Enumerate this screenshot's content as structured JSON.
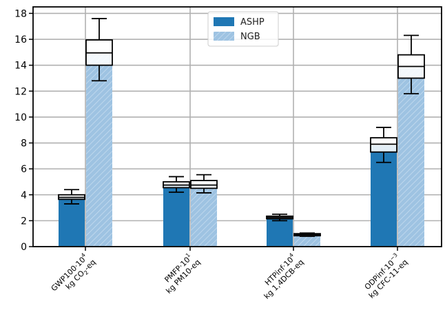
{
  "chart_data": {
    "type": "bar",
    "categories": [
      {
        "line1": "GWP100·10",
        "sup1": "4",
        "line2_pre": "kg CO",
        "sub2": "2",
        "line2_post": "-eq"
      },
      {
        "line1": "PMFP·10",
        "sup1": "1",
        "line2_pre": "kg PM10-eq",
        "sub2": "",
        "line2_post": ""
      },
      {
        "line1": "HTPinf·10",
        "sup1": "4",
        "line2_pre": "kg 1,4DCB-eq",
        "sub2": "",
        "line2_post": ""
      },
      {
        "line1": "ODPinf·10",
        "sup1": "−3",
        "line2_pre": "kg CFC-11-eq",
        "sub2": "",
        "line2_post": ""
      }
    ],
    "series": [
      {
        "name": "ASHP",
        "values": [
          3.75,
          4.75,
          2.2,
          7.8
        ],
        "box": [
          {
            "whisker_low": 3.3,
            "q1": 3.65,
            "median": 3.8,
            "q3": 4.0,
            "whisker_high": 4.4
          },
          {
            "whisker_low": 4.2,
            "q1": 4.55,
            "median": 4.75,
            "q3": 5.0,
            "whisker_high": 5.4
          },
          {
            "whisker_low": 2.0,
            "q1": 2.15,
            "median": 2.25,
            "q3": 2.35,
            "whisker_high": 2.5
          },
          {
            "whisker_low": 6.5,
            "q1": 7.3,
            "median": 7.9,
            "q3": 8.4,
            "whisker_high": 9.2
          }
        ]
      },
      {
        "name": "NGB",
        "values": [
          14.9,
          4.7,
          0.9,
          13.8
        ],
        "box": [
          {
            "whisker_low": 12.8,
            "q1": 14.0,
            "median": 14.95,
            "q3": 15.95,
            "whisker_high": 17.6
          },
          {
            "whisker_low": 4.15,
            "q1": 4.5,
            "median": 4.75,
            "q3": 5.1,
            "whisker_high": 5.55
          },
          {
            "whisker_low": 0.8,
            "q1": 0.87,
            "median": 0.93,
            "q3": 1.0,
            "whisker_high": 1.05
          },
          {
            "whisker_low": 11.8,
            "q1": 13.0,
            "median": 13.9,
            "q3": 14.8,
            "whisker_high": 16.3
          }
        ]
      }
    ],
    "ylim": [
      0,
      18.5
    ],
    "yticks": [
      "0",
      "2",
      "4",
      "6",
      "8",
      "10",
      "12",
      "14",
      "16",
      "18"
    ],
    "grid": true,
    "legend_position": "top-center",
    "colors": {
      "ASHP": "#1f77b4",
      "NGB": "#9ec3e2",
      "NGB_hatch": "#c9def0"
    }
  }
}
